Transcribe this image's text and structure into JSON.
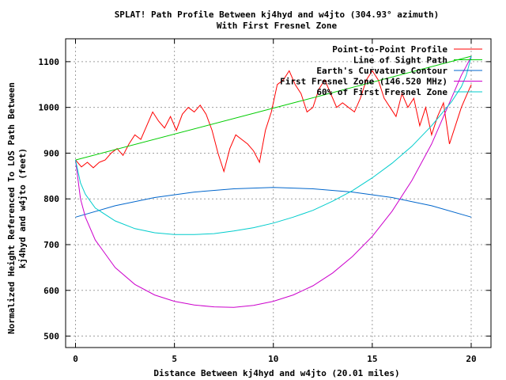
{
  "chart_data": {
    "type": "line",
    "title": "SPLAT! Path Profile Between kj4hyd and w4jto (304.93° azimuth)",
    "subtitle": "With First Fresnel Zone",
    "xlabel": "Distance Between kj4hyd and w4jto (20.01 miles)",
    "ylabel_line1": "Normalized Height Referenced To LOS Path Between",
    "ylabel_line2": "kj4hyd and w4jto (feet)",
    "xlim": [
      -0.5,
      21
    ],
    "ylim": [
      475,
      1150
    ],
    "x_ticks": [
      0,
      5,
      10,
      15,
      20
    ],
    "y_ticks": [
      500,
      600,
      700,
      800,
      900,
      1000,
      1100
    ],
    "grid": true,
    "legend_position": "top-right",
    "series": [
      {
        "name": "Point-to-Point Profile",
        "color": "#ff0000",
        "x": [
          0,
          0.3,
          0.6,
          0.9,
          1.2,
          1.5,
          1.8,
          2.1,
          2.4,
          2.7,
          3.0,
          3.3,
          3.6,
          3.9,
          4.2,
          4.5,
          4.8,
          5.1,
          5.4,
          5.7,
          6.0,
          6.3,
          6.6,
          6.9,
          7.2,
          7.5,
          7.8,
          8.1,
          8.4,
          8.7,
          9.0,
          9.3,
          9.6,
          9.9,
          10.2,
          10.5,
          10.8,
          11.1,
          11.4,
          11.7,
          12.0,
          12.3,
          12.6,
          12.9,
          13.2,
          13.5,
          13.8,
          14.1,
          14.4,
          14.7,
          15.0,
          15.3,
          15.6,
          15.9,
          16.2,
          16.5,
          16.8,
          17.1,
          17.4,
          17.7,
          18.0,
          18.3,
          18.6,
          18.9,
          19.2,
          19.5,
          19.8,
          20.01
        ],
        "values": [
          885,
          870,
          880,
          868,
          880,
          885,
          900,
          910,
          895,
          920,
          940,
          930,
          960,
          990,
          970,
          955,
          980,
          950,
          985,
          1000,
          990,
          1005,
          985,
          950,
          900,
          860,
          910,
          940,
          930,
          920,
          905,
          880,
          950,
          990,
          1050,
          1060,
          1080,
          1050,
          1030,
          990,
          1000,
          1040,
          1060,
          1030,
          1000,
          1010,
          1000,
          990,
          1020,
          1060,
          1080,
          1060,
          1020,
          1000,
          980,
          1030,
          1000,
          1020,
          960,
          1000,
          940,
          980,
          1010,
          920,
          960,
          1000,
          1030,
          1050
        ]
      },
      {
        "name": "Line of Sight Path",
        "color": "#00cc00",
        "x": [
          0,
          20.01
        ],
        "values": [
          885,
          1112
        ]
      },
      {
        "name": "Earth's Curvature Contour",
        "color": "#0066cc",
        "x": [
          0,
          2,
          4,
          6,
          8,
          10,
          12,
          14,
          16,
          18,
          20.01
        ],
        "values": [
          760,
          785,
          803,
          815,
          822,
          825,
          822,
          815,
          803,
          785,
          760
        ]
      },
      {
        "name": "First Fresnel Zone (146.520 MHz)",
        "color": "#cc00cc",
        "x": [
          0,
          0.25,
          0.5,
          1,
          2,
          3,
          4,
          5,
          6,
          7,
          8,
          9,
          10,
          11,
          12,
          13,
          14,
          15,
          16,
          17,
          18,
          19,
          19.5,
          19.75,
          20.01
        ],
        "values": [
          885,
          800,
          760,
          710,
          650,
          613,
          590,
          576,
          568,
          564,
          563,
          567,
          576,
          590,
          610,
          638,
          674,
          718,
          773,
          840,
          920,
          1020,
          1070,
          1090,
          1112
        ]
      },
      {
        "name": "60% of First Fresnel Zone",
        "color": "#00cccc",
        "x": [
          0,
          0.25,
          0.5,
          1,
          2,
          3,
          4,
          5,
          6,
          7,
          8,
          9,
          10,
          11,
          12,
          13,
          14,
          15,
          16,
          17,
          18,
          19,
          19.5,
          19.75,
          20.01
        ],
        "values": [
          885,
          835,
          810,
          780,
          752,
          735,
          726,
          722,
          722,
          724,
          730,
          737,
          747,
          760,
          775,
          795,
          818,
          846,
          878,
          915,
          960,
          1012,
          1045,
          1070,
          1112
        ]
      }
    ]
  }
}
